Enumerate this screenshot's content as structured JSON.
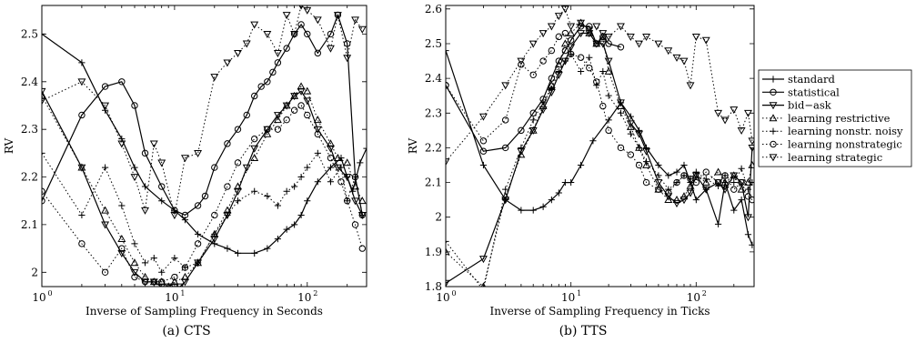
{
  "chart_data": [
    {
      "type": "line",
      "caption": "(a)  CTS",
      "xlabel": "Inverse of Sampling Frequency in Seconds",
      "ylabel": "RV",
      "xscale": "log",
      "xlim": [
        1,
        280
      ],
      "ylim": [
        1.97,
        2.56
      ],
      "xticks": [
        1,
        10,
        100
      ],
      "xtick_labels": [
        "10",
        "10",
        "10"
      ],
      "xtick_exponents": [
        "0",
        "1",
        "2"
      ],
      "yticks": [
        2.0,
        2.1,
        2.2,
        2.3,
        2.4,
        2.5
      ],
      "ytick_labels": [
        "2",
        "2.1",
        "2.2",
        "2.3",
        "2.4",
        "2.5"
      ],
      "grid": false,
      "series": [
        {
          "name": "standard",
          "style": "solid",
          "marker": "plus",
          "x": [
            1,
            2,
            3,
            4,
            5,
            6,
            8,
            10,
            12,
            15,
            20,
            25,
            30,
            40,
            50,
            60,
            70,
            80,
            90,
            100,
            120,
            150,
            180,
            200,
            220,
            250,
            280
          ],
          "y": [
            2.5,
            2.44,
            2.34,
            2.28,
            2.22,
            2.18,
            2.15,
            2.13,
            2.11,
            2.08,
            2.06,
            2.05,
            2.04,
            2.04,
            2.05,
            2.07,
            2.09,
            2.1,
            2.12,
            2.15,
            2.19,
            2.22,
            2.24,
            2.2,
            2.17,
            2.23,
            2.26
          ]
        },
        {
          "name": "statistical",
          "style": "solid",
          "marker": "circle",
          "x": [
            1,
            2,
            3,
            4,
            5,
            6,
            8,
            10,
            12,
            15,
            17,
            20,
            25,
            30,
            35,
            40,
            45,
            50,
            55,
            60,
            70,
            80,
            90,
            100,
            120,
            150,
            170,
            200,
            230,
            260
          ],
          "y": [
            2.15,
            2.33,
            2.39,
            2.4,
            2.35,
            2.25,
            2.18,
            2.13,
            2.12,
            2.14,
            2.16,
            2.22,
            2.27,
            2.3,
            2.33,
            2.37,
            2.39,
            2.4,
            2.42,
            2.44,
            2.47,
            2.5,
            2.52,
            2.5,
            2.46,
            2.5,
            2.54,
            2.48,
            2.2,
            2.12
          ]
        },
        {
          "name": "bid−ask",
          "style": "solid",
          "marker": "triangle-down",
          "x": [
            1,
            2,
            3,
            4,
            5,
            6,
            7,
            8,
            9,
            10,
            11,
            12,
            15,
            20,
            25,
            30,
            35,
            40,
            50,
            60,
            70,
            80,
            90,
            100,
            120,
            150,
            170,
            200,
            230,
            260
          ],
          "y": [
            2.38,
            2.22,
            2.1,
            2.04,
            2.0,
            1.98,
            1.98,
            1.97,
            1.97,
            1.97,
            1.97,
            1.98,
            2.02,
            2.07,
            2.12,
            2.17,
            2.22,
            2.26,
            2.3,
            2.33,
            2.35,
            2.37,
            2.38,
            2.36,
            2.3,
            2.26,
            2.22,
            2.2,
            2.15,
            2.12
          ]
        },
        {
          "name": "learning restrictive",
          "style": "dotted",
          "marker": "triangle-up",
          "x": [
            1,
            2,
            3,
            4,
            5,
            6,
            7,
            8,
            9,
            10,
            12,
            15,
            20,
            25,
            30,
            40,
            50,
            60,
            70,
            80,
            90,
            100,
            120,
            150,
            170,
            200,
            230,
            260
          ],
          "y": [
            2.37,
            2.22,
            2.13,
            2.07,
            2.02,
            1.99,
            1.98,
            1.98,
            1.97,
            1.98,
            1.99,
            2.02,
            2.08,
            2.13,
            2.18,
            2.24,
            2.29,
            2.32,
            2.35,
            2.37,
            2.39,
            2.38,
            2.32,
            2.27,
            2.24,
            2.23,
            2.18,
            2.15
          ]
        },
        {
          "name": "learning nonstr. noisy",
          "style": "dotted",
          "marker": "plus",
          "x": [
            1,
            2,
            3,
            4,
            5,
            6,
            7,
            8,
            10,
            12,
            15,
            20,
            25,
            30,
            40,
            50,
            60,
            70,
            80,
            90,
            100,
            120,
            150,
            180,
            200,
            230,
            260
          ],
          "y": [
            2.25,
            2.12,
            2.22,
            2.14,
            2.06,
            2.02,
            2.03,
            2.0,
            2.03,
            2.01,
            2.02,
            2.08,
            2.12,
            2.15,
            2.17,
            2.16,
            2.14,
            2.17,
            2.18,
            2.2,
            2.22,
            2.25,
            2.19,
            2.22,
            2.15,
            2.2,
            2.12
          ]
        },
        {
          "name": "learning nonstrategic",
          "style": "dotted",
          "marker": "circle",
          "x": [
            1,
            2,
            3,
            4,
            5,
            6,
            7,
            8,
            10,
            12,
            15,
            20,
            25,
            30,
            40,
            50,
            60,
            70,
            80,
            90,
            100,
            120,
            150,
            180,
            200,
            230,
            260
          ],
          "y": [
            2.17,
            2.06,
            2.0,
            2.05,
            1.99,
            1.98,
            1.98,
            1.98,
            1.99,
            2.01,
            2.06,
            2.12,
            2.18,
            2.23,
            2.28,
            2.3,
            2.3,
            2.32,
            2.34,
            2.35,
            2.33,
            2.29,
            2.24,
            2.19,
            2.15,
            2.1,
            2.05
          ]
        },
        {
          "name": "learning strategic",
          "style": "dotted",
          "marker": "triangle-down",
          "x": [
            1,
            2,
            3,
            4,
            5,
            6,
            7,
            8,
            10,
            12,
            15,
            20,
            25,
            30,
            35,
            40,
            50,
            60,
            70,
            80,
            90,
            100,
            120,
            150,
            170,
            200,
            230,
            260
          ],
          "y": [
            2.36,
            2.4,
            2.35,
            2.27,
            2.2,
            2.13,
            2.27,
            2.23,
            2.12,
            2.24,
            2.25,
            2.41,
            2.44,
            2.46,
            2.48,
            2.52,
            2.5,
            2.46,
            2.54,
            2.5,
            2.56,
            2.55,
            2.53,
            2.47,
            2.54,
            2.45,
            2.53,
            2.51
          ]
        }
      ]
    },
    {
      "type": "line",
      "caption": "(b)  TTS",
      "xlabel": "Inverse of Sampling Frequency in Ticks",
      "ylabel": "RV",
      "xscale": "log",
      "xlim": [
        1,
        290
      ],
      "ylim": [
        1.8,
        2.61
      ],
      "xticks": [
        1,
        10,
        100
      ],
      "xtick_labels": [
        "10",
        "10",
        "10"
      ],
      "xtick_exponents": [
        "0",
        "1",
        "2"
      ],
      "yticks": [
        1.8,
        1.9,
        2.0,
        2.1,
        2.2,
        2.3,
        2.4,
        2.5,
        2.6
      ],
      "ytick_labels": [
        "1.8",
        "1.9",
        "2",
        "2.1",
        "2.2",
        "2.3",
        "2.4",
        "2.5",
        "2.6"
      ],
      "grid": false,
      "legend": {
        "placement": "right",
        "entries": [
          "standard",
          "statistical",
          "bid−ask",
          "learning restrictive",
          "learning nonstr. noisy",
          "learning nonstrategic",
          "learning strategic"
        ]
      },
      "series": [
        {
          "name": "standard",
          "style": "solid",
          "marker": "plus",
          "x": [
            1,
            2,
            3,
            4,
            5,
            6,
            7,
            8,
            9,
            10,
            12,
            15,
            20,
            25,
            30,
            35,
            40,
            50,
            60,
            70,
            80,
            90,
            100,
            120,
            150,
            170,
            200,
            230,
            260,
            280
          ],
          "y": [
            2.48,
            2.15,
            2.05,
            2.02,
            2.02,
            2.03,
            2.05,
            2.07,
            2.1,
            2.1,
            2.15,
            2.22,
            2.28,
            2.33,
            2.29,
            2.25,
            2.2,
            2.15,
            2.12,
            2.13,
            2.15,
            2.1,
            2.05,
            2.08,
            1.98,
            2.1,
            2.02,
            2.05,
            1.95,
            1.92
          ]
        },
        {
          "name": "statistical",
          "style": "solid",
          "marker": "circle",
          "x": [
            1,
            2,
            3,
            4,
            5,
            6,
            7,
            8,
            9,
            10,
            12,
            14,
            16,
            18,
            20,
            25
          ],
          "y": [
            2.38,
            2.19,
            2.2,
            2.25,
            2.3,
            2.34,
            2.4,
            2.45,
            2.48,
            2.51,
            2.55,
            2.55,
            2.5,
            2.52,
            2.5,
            2.49
          ]
        },
        {
          "name": "bid−ask",
          "style": "solid",
          "marker": "triangle-down",
          "x": [
            1,
            2,
            3,
            4,
            5,
            6,
            7,
            8,
            9,
            10,
            12,
            14,
            16,
            18,
            20,
            25,
            30,
            35,
            40,
            50,
            60,
            70,
            80,
            90,
            100,
            120,
            150,
            170,
            200,
            230,
            260,
            280
          ],
          "y": [
            1.81,
            1.88,
            2.05,
            2.19,
            2.25,
            2.31,
            2.36,
            2.41,
            2.45,
            2.49,
            2.53,
            2.53,
            2.5,
            2.5,
            2.45,
            2.33,
            2.27,
            2.24,
            2.19,
            2.1,
            2.06,
            2.04,
            2.05,
            2.07,
            2.12,
            2.08,
            2.1,
            2.08,
            2.12,
            2.1,
            2.0,
            2.2
          ]
        },
        {
          "name": "learning restrictive",
          "style": "dotted",
          "marker": "triangle-up",
          "x": [
            1,
            2,
            3,
            4,
            5,
            6,
            7,
            8,
            9,
            10,
            12,
            14,
            16,
            18,
            20,
            25,
            30,
            35,
            40,
            50,
            60,
            70,
            80,
            90,
            100,
            120,
            150,
            170,
            200,
            230,
            260,
            280
          ],
          "y": [
            1.9,
            1.8,
            2.06,
            2.18,
            2.25,
            2.32,
            2.38,
            2.44,
            2.5,
            2.53,
            2.56,
            2.53,
            2.5,
            2.52,
            2.42,
            2.32,
            2.26,
            2.2,
            2.15,
            2.08,
            2.05,
            2.05,
            2.06,
            2.09,
            2.12,
            2.1,
            2.13,
            2.1,
            2.12,
            2.08,
            2.1,
            2.15
          ]
        },
        {
          "name": "learning nonstr. noisy",
          "style": "dotted",
          "marker": "plus",
          "x": [
            1,
            2,
            3,
            4,
            5,
            6,
            7,
            8,
            9,
            10,
            12,
            14,
            16,
            18,
            20,
            25,
            30,
            35,
            40,
            50,
            60,
            70,
            80,
            90,
            100,
            120,
            150,
            170,
            200,
            230,
            260,
            280
          ],
          "y": [
            1.93,
            1.79,
            2.08,
            2.2,
            2.28,
            2.33,
            2.37,
            2.42,
            2.45,
            2.47,
            2.42,
            2.46,
            2.38,
            2.42,
            2.35,
            2.3,
            2.24,
            2.2,
            2.16,
            2.12,
            2.08,
            2.1,
            2.12,
            2.11,
            2.13,
            2.11,
            2.09,
            2.12,
            2.1,
            2.14,
            2.08,
            2.1
          ]
        },
        {
          "name": "learning nonstrategic",
          "style": "dotted",
          "marker": "circle",
          "x": [
            1,
            2,
            3,
            4,
            5,
            6,
            7,
            8,
            9,
            10,
            12,
            14,
            16,
            18,
            20,
            25,
            30,
            35,
            40,
            50,
            60,
            70,
            80,
            90,
            100,
            120,
            150,
            170,
            200,
            230,
            260,
            280
          ],
          "y": [
            2.38,
            2.22,
            2.28,
            2.44,
            2.41,
            2.45,
            2.48,
            2.52,
            2.53,
            2.47,
            2.46,
            2.43,
            2.39,
            2.32,
            2.25,
            2.2,
            2.18,
            2.15,
            2.1,
            2.08,
            2.07,
            2.1,
            2.12,
            2.11,
            2.1,
            2.13,
            2.1,
            2.12,
            2.08,
            2.1,
            2.06,
            2.05
          ]
        },
        {
          "name": "learning strategic",
          "style": "dotted",
          "marker": "triangle-down",
          "x": [
            1,
            2,
            3,
            4,
            5,
            6,
            7,
            8,
            9,
            10,
            12,
            14,
            16,
            18,
            20,
            25,
            30,
            35,
            40,
            50,
            60,
            70,
            80,
            90,
            100,
            120,
            150,
            170,
            200,
            230,
            260,
            280
          ],
          "y": [
            2.16,
            2.29,
            2.38,
            2.45,
            2.5,
            2.53,
            2.55,
            2.58,
            2.6,
            2.55,
            2.56,
            2.54,
            2.55,
            2.53,
            2.52,
            2.55,
            2.52,
            2.5,
            2.52,
            2.5,
            2.48,
            2.46,
            2.45,
            2.38,
            2.52,
            2.51,
            2.3,
            2.28,
            2.31,
            2.25,
            2.3,
            2.22
          ]
        }
      ]
    }
  ]
}
